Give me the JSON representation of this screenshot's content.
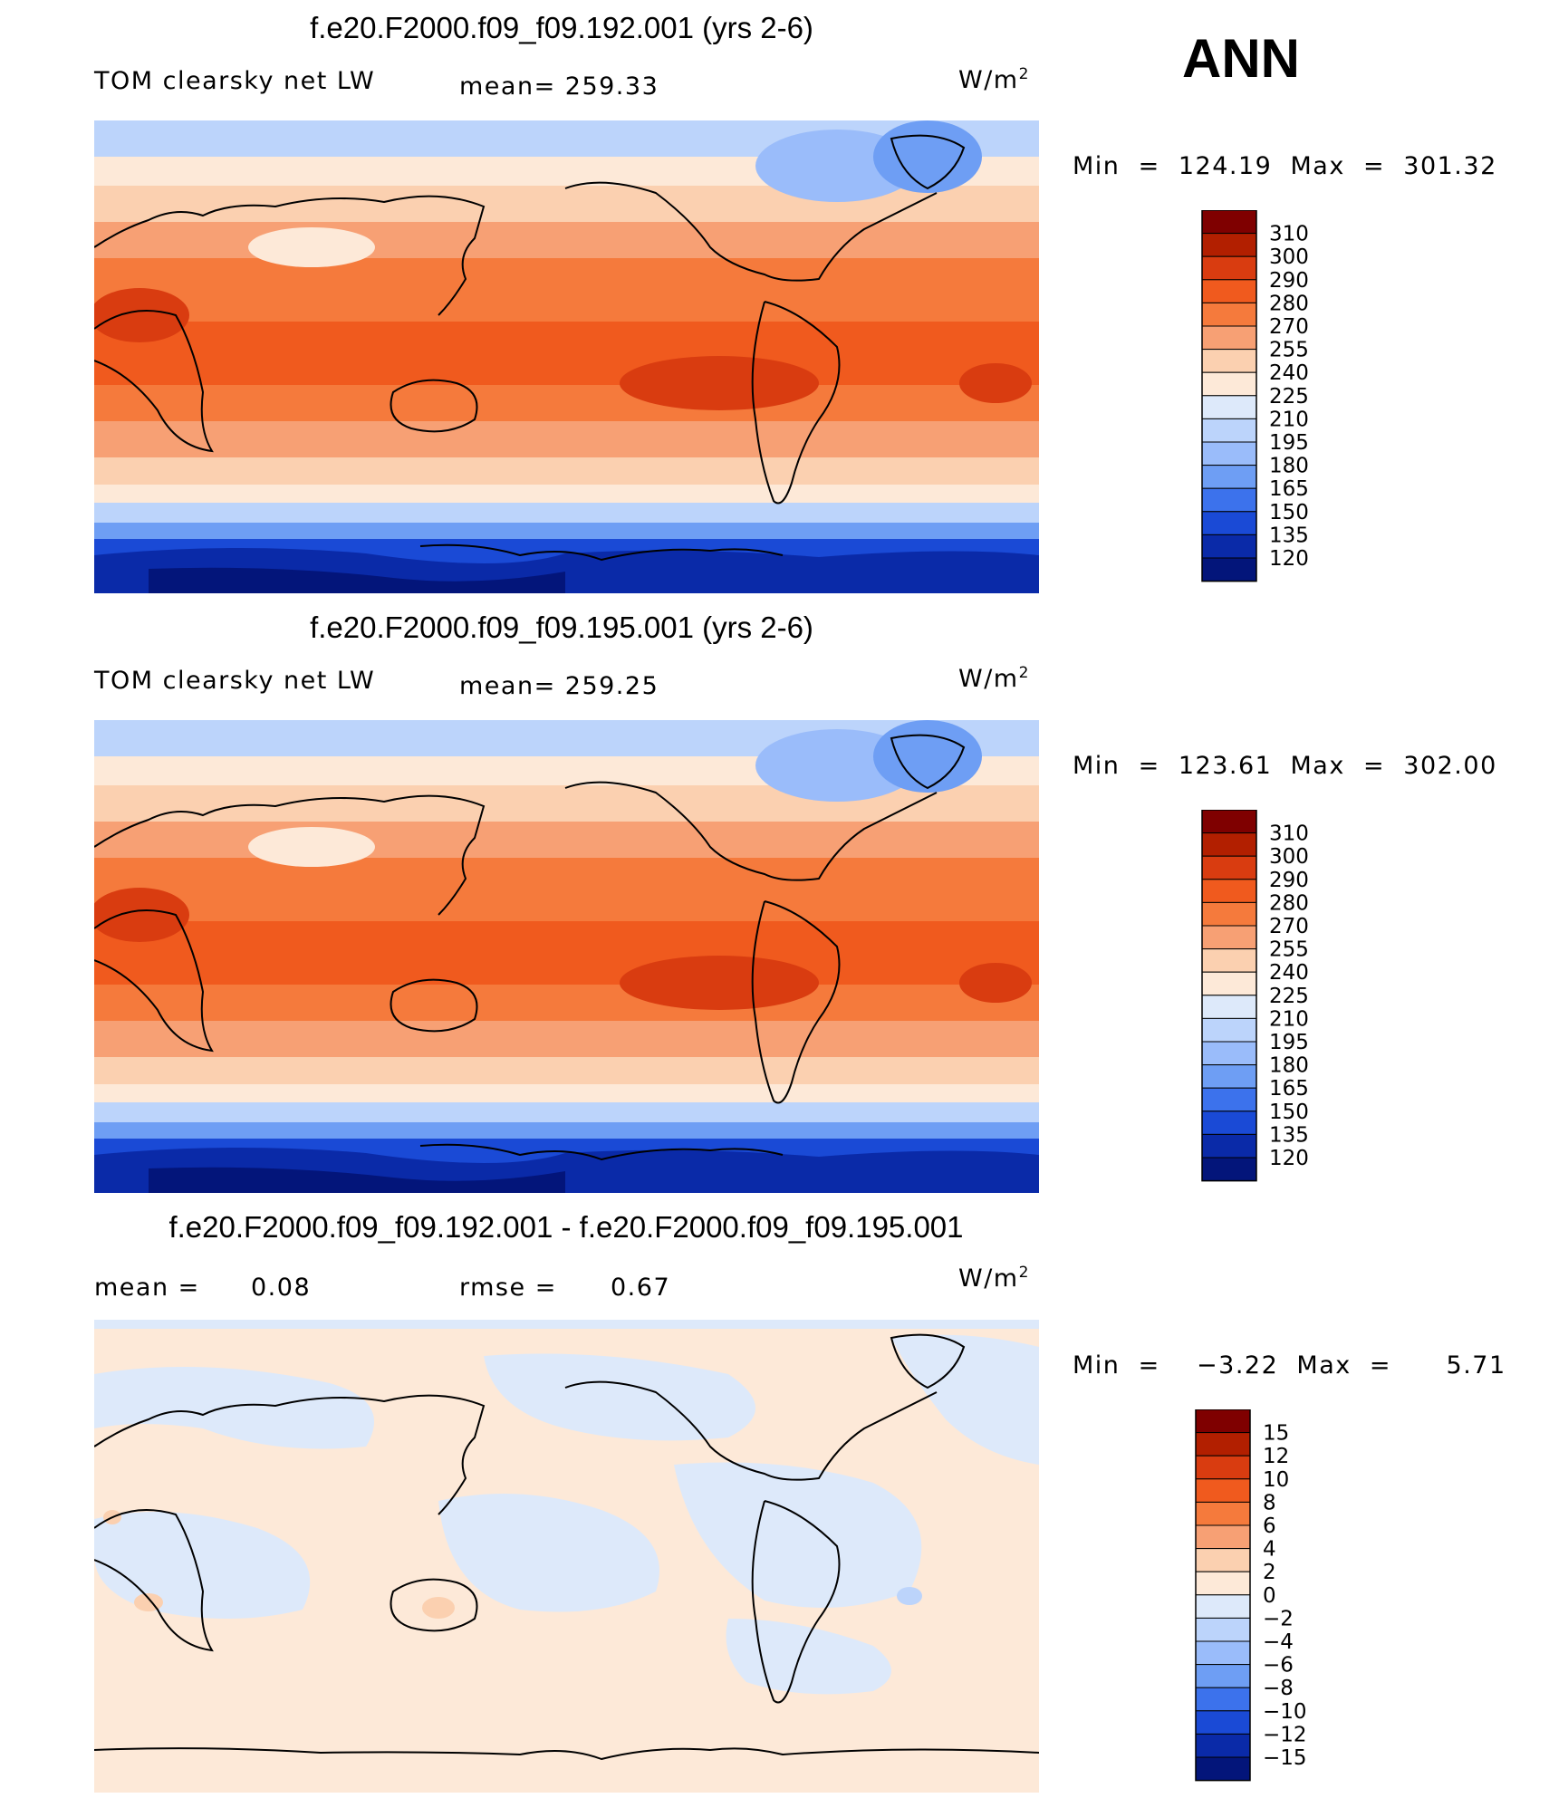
{
  "season": "ANN",
  "units": {
    "base": "W/m",
    "sup": "2"
  },
  "panels": [
    {
      "title": "f.e20.F2000.f09_f09.192.001 (yrs 2-6)",
      "variable": "TOM clearsky net LW",
      "stat_text": "mean= 259.33",
      "minmax": "Min  =  124.19  Max  =  301.32",
      "colorbar": [
        "310",
        "300",
        "290",
        "280",
        "270",
        "255",
        "240",
        "225",
        "210",
        "195",
        "180",
        "165",
        "150",
        "135",
        "120"
      ]
    },
    {
      "title": "f.e20.F2000.f09_f09.195.001 (yrs 2-6)",
      "variable": "TOM clearsky net LW",
      "stat_text": "mean= 259.25",
      "minmax": "Min  =  123.61  Max  =  302.00",
      "colorbar": [
        "310",
        "300",
        "290",
        "280",
        "270",
        "255",
        "240",
        "225",
        "210",
        "195",
        "180",
        "165",
        "150",
        "135",
        "120"
      ]
    },
    {
      "title": "f.e20.F2000.f09_f09.192.001 - f.e20.F2000.f09_f09.195.001",
      "mean_label": "mean  =",
      "mean_value": "0.08",
      "rmse_label": "rmse  =",
      "rmse_value": "0.67",
      "minmax": "Min  =    −3.22  Max  =      5.71",
      "colorbar": [
        "15",
        "12",
        "10",
        "8",
        "6",
        "4",
        "2",
        "0",
        "−2",
        "−4",
        "−6",
        "−8",
        "−10",
        "−12",
        "−15"
      ]
    }
  ],
  "colors": {
    "abs_scale": [
      "#7f0000",
      "#b21f00",
      "#d93c10",
      "#f05a1e",
      "#f57a3c",
      "#f7a074",
      "#fbd0b0",
      "#fde9d8",
      "#dde9fa",
      "#bcd4fb",
      "#9abcfa",
      "#6e9ef4",
      "#3c72ec",
      "#1a4ad6",
      "#0a2aa8",
      "#03157a"
    ],
    "diff_scale": [
      "#7f0000",
      "#b21f00",
      "#d93c10",
      "#f05a1e",
      "#f57a3c",
      "#f7a074",
      "#fbd0b0",
      "#fde9d8",
      "#dde9fa",
      "#bcd4fb",
      "#9abcfa",
      "#6e9ef4",
      "#3c72ec",
      "#1a4ad6",
      "#0a2aa8",
      "#03157a"
    ]
  }
}
